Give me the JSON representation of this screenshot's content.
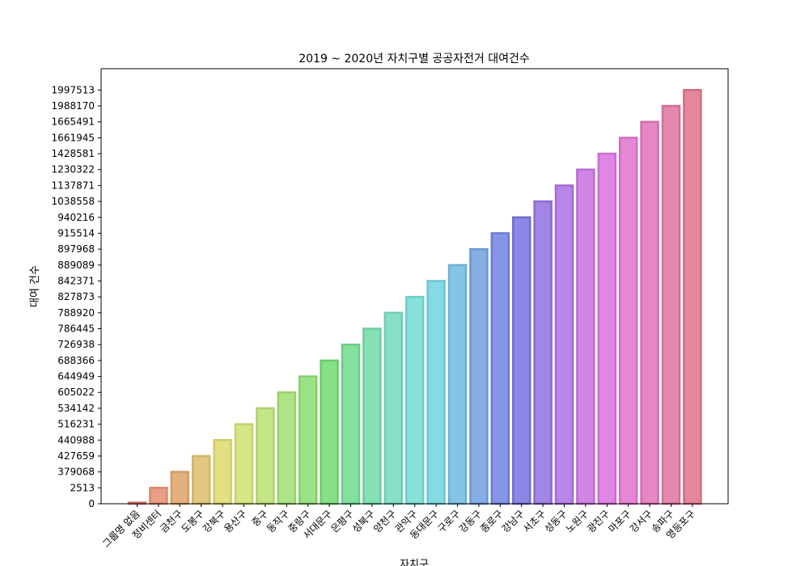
{
  "chart_data": {
    "type": "bar",
    "title": "2019 ~ 2020년 자치구별 공공자전거 대여건수",
    "xlabel": "자치구",
    "ylabel": "대여 건수",
    "categories": [
      "그룹명 없음",
      "정비센터",
      "금천구",
      "도봉구",
      "강북구",
      "용산구",
      "중구",
      "동작구",
      "중랑구",
      "서대문구",
      "은평구",
      "성북구",
      "양천구",
      "관악구",
      "동대문구",
      "구로구",
      "강동구",
      "종로구",
      "강남구",
      "서초구",
      "성동구",
      "노원구",
      "광진구",
      "마포구",
      "강서구",
      "송파구",
      "영등포구"
    ],
    "y_tick_labels": [
      "0",
      "2513",
      "379068",
      "427659",
      "440988",
      "516231",
      "534142",
      "605022",
      "644949",
      "688366",
      "726938",
      "786445",
      "788920",
      "827873",
      "842371",
      "889089",
      "897968",
      "915514",
      "940216",
      "1038558",
      "1137871",
      "1230322",
      "1428581",
      "1661945",
      "1665491",
      "1988170",
      "1997513"
    ],
    "values": [
      0,
      2513,
      379068,
      427659,
      440988,
      516231,
      534142,
      605022,
      644949,
      688366,
      726938,
      786445,
      788920,
      827873,
      842371,
      889089,
      897968,
      915514,
      940216,
      1038558,
      1137871,
      1230322,
      1428581,
      1661945,
      1665491,
      1988170,
      1997513
    ],
    "y_axis_scale": "categorical (ticks are evenly spaced at the listed values)",
    "grid": false,
    "colors": [
      "#e98e8e",
      "#e99e85",
      "#e5b07f",
      "#e3c682",
      "#e2e082",
      "#d6e586",
      "#c3e487",
      "#aee487",
      "#9ae286",
      "#85e086",
      "#84e09f",
      "#86e0b3",
      "#86e0c7",
      "#86e1da",
      "#87d9e4",
      "#86c4e4",
      "#86ade4",
      "#8695e4",
      "#8c86e5",
      "#a286e5",
      "#b886e6",
      "#cf86e6",
      "#e086e4",
      "#e587d5",
      "#e587c2",
      "#e588ae",
      "#e5879a"
    ],
    "edge_colors": [
      "#d67373",
      "#d68a6a",
      "#d29d64",
      "#d0b566",
      "#cfcd66",
      "#c4d26a",
      "#aed26b",
      "#98d26b",
      "#82cf6a",
      "#6acd6b",
      "#6acd88",
      "#6bcd9e",
      "#6bcdb4",
      "#6bcec9",
      "#6cc6d2",
      "#6bb0d2",
      "#6b96d2",
      "#6b7cd2",
      "#736bd2",
      "#8c6bd2",
      "#a46bd3",
      "#bd6bd3",
      "#cf6bd1",
      "#d26cc3",
      "#d26cae",
      "#d26d98",
      "#d26c82"
    ]
  }
}
